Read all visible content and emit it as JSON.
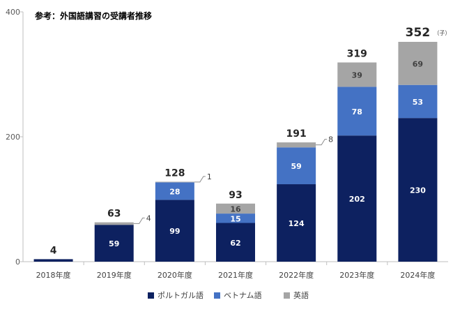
{
  "title": "参考：外国語講習の受講者推移",
  "unit": "（子）",
  "chart_data": {
    "type": "bar",
    "stacked": true,
    "categories": [
      "2018年度",
      "2019年度",
      "2020年度",
      "2021年度",
      "2022年度",
      "2023年度",
      "2024年度"
    ],
    "series": [
      {
        "name": "ポルトガル語",
        "color": "#0d2160",
        "values": [
          4,
          59,
          99,
          62,
          124,
          202,
          230
        ]
      },
      {
        "name": "ベトナム語",
        "color": "#4472c4",
        "values": [
          0,
          0,
          28,
          15,
          59,
          78,
          53
        ]
      },
      {
        "name": "英語",
        "color": "#a5a5a5",
        "values": [
          0,
          4,
          1,
          16,
          8,
          39,
          69
        ]
      }
    ],
    "totals": [
      4,
      63,
      128,
      93,
      191,
      319,
      352
    ],
    "yticks": [
      0,
      200,
      400
    ],
    "ylim": [
      0,
      400
    ],
    "legend_position": "bottom"
  }
}
